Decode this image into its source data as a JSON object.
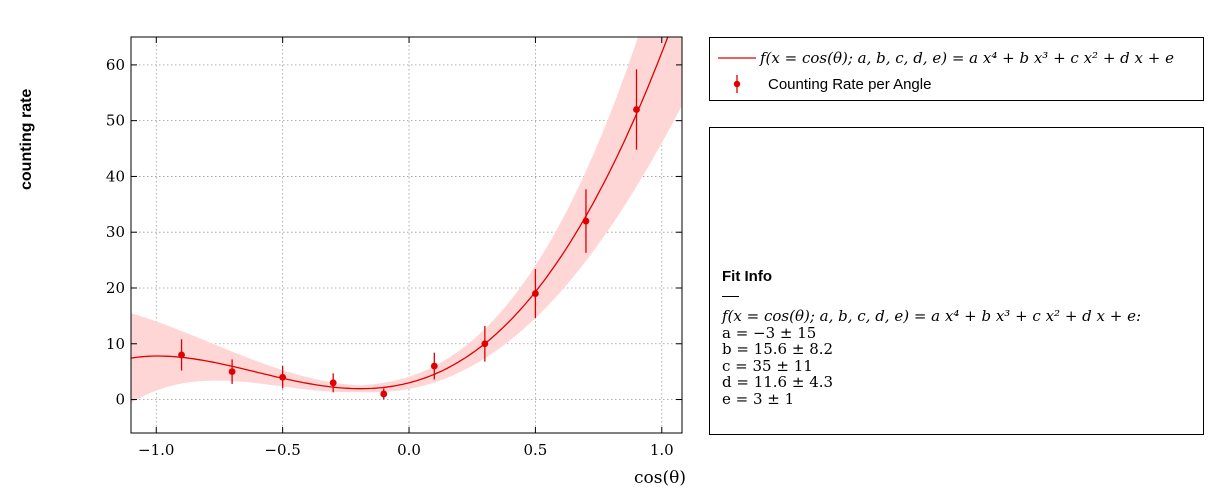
{
  "chart_data": {
    "type": "scatter",
    "xlabel": "cos(θ)",
    "ylabel": "counting rate",
    "xlim": [
      -1.1,
      1.08
    ],
    "ylim": [
      -6,
      65
    ],
    "xticks": [
      -1.0,
      -0.5,
      0.0,
      0.5,
      1.0
    ],
    "xtick_labels": [
      "−1.0",
      "−0.5",
      "0.0",
      "0.5",
      "1.0"
    ],
    "yticks": [
      0,
      10,
      20,
      30,
      40,
      50,
      60
    ],
    "ytick_labels": [
      "0",
      "10",
      "20",
      "30",
      "40",
      "50",
      "60"
    ],
    "grid": true,
    "series": [
      {
        "name": "Counting Rate per Angle",
        "kind": "errorbar",
        "color": "#e00000",
        "x": [
          -0.9,
          -0.7,
          -0.5,
          -0.3,
          -0.1,
          0.1,
          0.3,
          0.5,
          0.7,
          0.9
        ],
        "y": [
          8,
          5,
          4,
          3,
          1,
          6,
          10,
          19,
          32,
          52
        ],
        "yerr": [
          2.8,
          2.2,
          2.0,
          1.7,
          1.0,
          2.4,
          3.2,
          4.4,
          5.7,
          7.2
        ]
      },
      {
        "name": "f(x = cos(θ); a, b, c, d, e) = a x⁴ + b x³ + c x² + d x + e",
        "kind": "fit",
        "color": "#e00000",
        "band_color": "#ffd6d6",
        "params": {
          "a": -3,
          "b": 15.6,
          "c": 35,
          "d": 11.6,
          "e": 3
        }
      }
    ],
    "legend": "top-right outside"
  },
  "legend": {
    "fit_label": "f(x = cos(θ); a, b, c, d, e) = a x⁴ + b x³ + c x² + d x + e",
    "data_label": "Counting Rate per Angle"
  },
  "fit_info": {
    "title": "Fit Info",
    "function": "f(x = cos(θ); a, b, c, d, e) = a x⁴ + b x³ + c x² + d x + e:",
    "params": [
      "a = −3 ± 15",
      "b = 15.6 ± 8.2",
      "c = 35 ± 11",
      "d = 11.6 ± 4.3",
      "e = 3 ± 1"
    ]
  }
}
